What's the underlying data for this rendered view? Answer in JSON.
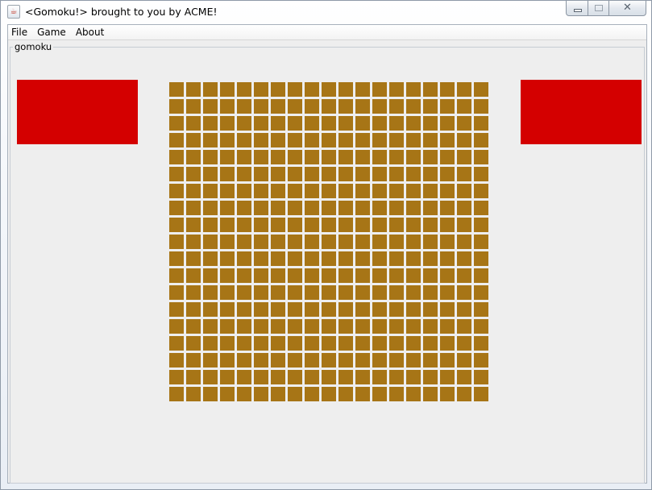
{
  "window": {
    "title": "<Gomoku!> brought to you by ACME!",
    "icon": "java-app-icon",
    "controls": {
      "minimize": "minimize-icon",
      "maximize": "maximize-icon",
      "close_glyph": "✕"
    }
  },
  "menubar": {
    "items": [
      "File",
      "Game",
      "About"
    ]
  },
  "panel": {
    "label": "gomoku"
  },
  "colors": {
    "player_panel": "#d40000",
    "board_cell": "#a77516",
    "background": "#eeeeee"
  },
  "board": {
    "rows": 19,
    "columns": 19
  }
}
